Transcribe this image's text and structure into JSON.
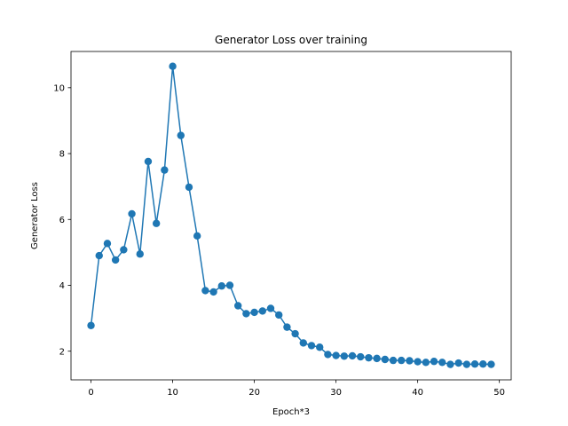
{
  "chart_data": {
    "type": "line",
    "title": "Generator Loss over training",
    "xlabel": "Epoch*3",
    "ylabel": "Generator Loss",
    "xlim": [
      -2.45,
      51.45
    ],
    "ylim": [
      1.13,
      11.1
    ],
    "xticks": [
      0,
      10,
      20,
      30,
      40,
      50
    ],
    "yticks": [
      2,
      4,
      6,
      8,
      10
    ],
    "grid": false,
    "markers": true,
    "series": [
      {
        "color": "#1f77b4",
        "x": [
          0,
          1,
          2,
          3,
          4,
          5,
          6,
          7,
          8,
          9,
          10,
          11,
          12,
          13,
          14,
          15,
          16,
          17,
          18,
          19,
          20,
          21,
          22,
          23,
          24,
          25,
          26,
          27,
          28,
          29,
          30,
          31,
          32,
          33,
          34,
          35,
          36,
          37,
          38,
          39,
          40,
          41,
          42,
          43,
          44,
          45,
          46,
          47,
          48,
          49
        ],
        "y": [
          2.78,
          4.9,
          5.27,
          4.77,
          5.08,
          6.17,
          4.95,
          7.76,
          5.88,
          7.5,
          10.65,
          8.55,
          6.98,
          5.5,
          3.84,
          3.8,
          3.98,
          4.0,
          3.38,
          3.14,
          3.18,
          3.22,
          3.3,
          3.1,
          2.73,
          2.53,
          2.25,
          2.17,
          2.12,
          1.9,
          1.87,
          1.85,
          1.86,
          1.83,
          1.8,
          1.78,
          1.75,
          1.72,
          1.72,
          1.71,
          1.68,
          1.66,
          1.69,
          1.66,
          1.6,
          1.64,
          1.6,
          1.61,
          1.61,
          1.6
        ]
      }
    ]
  }
}
